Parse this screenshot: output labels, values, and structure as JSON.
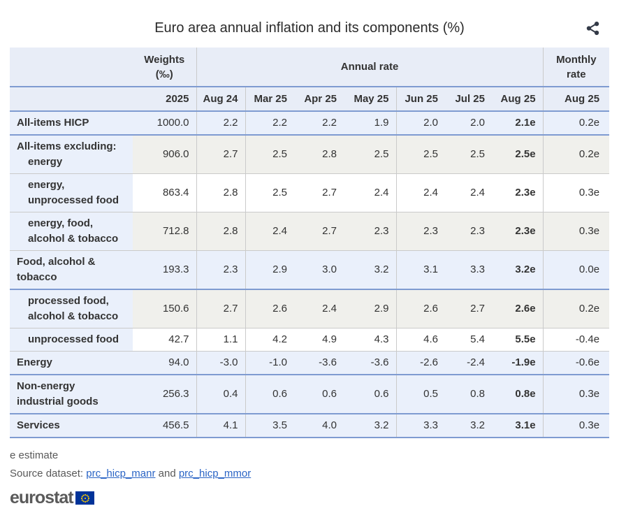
{
  "title": "Euro area annual inflation and its components (%)",
  "footnote": "e estimate",
  "source": {
    "prefix": "Source dataset:",
    "link1": "prc_hicp_manr",
    "conjunction": "and",
    "link2": "prc_hicp_mmor"
  },
  "logo": {
    "text": "eurostat",
    "flag_icon": "eu-flag-icon"
  },
  "icons": {
    "share": "share-icon"
  },
  "colors": {
    "accent": "#7f9bd1",
    "grid": "#cacaca",
    "header_bg": "#e8edf7",
    "tint_blue": "#eaf0fb",
    "tint_gray": "#f0f0ec",
    "link": "#2a64c5",
    "flag_blue": "#003399",
    "star_yellow": "#ffcc00"
  },
  "table": {
    "header": {
      "weights_line1": "Weights",
      "weights_line2": "(‰)",
      "annual": "Annual rate",
      "monthly_line1": "Monthly",
      "monthly_line2": "rate"
    },
    "subheader": {
      "weights_year": "2025",
      "months": [
        "Aug 24",
        "Mar 25",
        "Apr 25",
        "May 25",
        "Jun 25",
        "Jul 25"
      ],
      "annual_aug25": "Aug 25",
      "monthly_aug25": "Aug 25"
    },
    "rows": [
      {
        "label_lines": [
          "All-items HICP"
        ],
        "indent": [
          false
        ],
        "weight": "1000.0",
        "annual": [
          "2.2",
          "2.2",
          "2.2",
          "1.9",
          "2.0",
          "2.0"
        ],
        "aug25": "2.1e",
        "monthly": "0.2e",
        "level": "main",
        "shade": "blue"
      },
      {
        "label_lines": [
          "All-items excluding:",
          "energy"
        ],
        "indent": [
          false,
          true
        ],
        "weight": "906.0",
        "annual": [
          "2.7",
          "2.5",
          "2.8",
          "2.5",
          "2.5",
          "2.5"
        ],
        "aug25": "2.5e",
        "monthly": "0.2e",
        "level": "sub",
        "shade": "gray"
      },
      {
        "label_lines": [
          "energy,",
          "unprocessed food"
        ],
        "indent": [
          true,
          true
        ],
        "weight": "863.4",
        "annual": [
          "2.8",
          "2.5",
          "2.7",
          "2.4",
          "2.4",
          "2.4"
        ],
        "aug25": "2.3e",
        "monthly": "0.3e",
        "level": "sub",
        "shade": "white"
      },
      {
        "label_lines": [
          "energy, food,",
          "alcohol & tobacco"
        ],
        "indent": [
          true,
          true
        ],
        "weight": "712.8",
        "annual": [
          "2.8",
          "2.4",
          "2.7",
          "2.3",
          "2.3",
          "2.3"
        ],
        "aug25": "2.3e",
        "monthly": "0.3e",
        "level": "sub",
        "shade": "gray"
      },
      {
        "label_lines": [
          "Food, alcohol &",
          "tobacco"
        ],
        "indent": [
          false,
          false
        ],
        "weight": "193.3",
        "annual": [
          "2.3",
          "2.9",
          "3.0",
          "3.2",
          "3.1",
          "3.3"
        ],
        "aug25": "3.2e",
        "monthly": "0.0e",
        "level": "main",
        "shade": "blue"
      },
      {
        "label_lines": [
          "processed food,",
          "alcohol & tobacco"
        ],
        "indent": [
          true,
          true
        ],
        "weight": "150.6",
        "annual": [
          "2.7",
          "2.6",
          "2.4",
          "2.9",
          "2.6",
          "2.7"
        ],
        "aug25": "2.6e",
        "monthly": "0.2e",
        "level": "sub",
        "shade": "gray"
      },
      {
        "label_lines": [
          "unprocessed food"
        ],
        "indent": [
          true
        ],
        "weight": "42.7",
        "annual": [
          "1.1",
          "4.2",
          "4.9",
          "4.3",
          "4.6",
          "5.4"
        ],
        "aug25": "5.5e",
        "monthly": "-0.4e",
        "level": "sub",
        "shade": "white"
      },
      {
        "label_lines": [
          "Energy"
        ],
        "indent": [
          false
        ],
        "weight": "94.0",
        "annual": [
          "-3.0",
          "-1.0",
          "-3.6",
          "-3.6",
          "-2.6",
          "-2.4"
        ],
        "aug25": "-1.9e",
        "monthly": "-0.6e",
        "level": "main",
        "shade": "blue"
      },
      {
        "label_lines": [
          "Non-energy",
          "industrial goods"
        ],
        "indent": [
          false,
          false
        ],
        "weight": "256.3",
        "annual": [
          "0.4",
          "0.6",
          "0.6",
          "0.6",
          "0.5",
          "0.8"
        ],
        "aug25": "0.8e",
        "monthly": "0.3e",
        "level": "main",
        "shade": "blue"
      },
      {
        "label_lines": [
          "Services"
        ],
        "indent": [
          false
        ],
        "weight": "456.5",
        "annual": [
          "4.1",
          "3.5",
          "4.0",
          "3.2",
          "3.3",
          "3.2"
        ],
        "aug25": "3.1e",
        "monthly": "0.3e",
        "level": "main",
        "shade": "blue"
      }
    ]
  }
}
